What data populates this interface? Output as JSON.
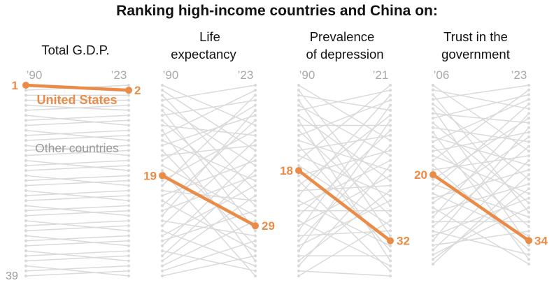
{
  "title": "Ranking high-income countries and China on:",
  "highlight_color": "#ea8c47",
  "other_color": "#dadada",
  "labels": {
    "us": "United States",
    "other": "Other countries",
    "bottom_rank": "39"
  },
  "chart_data": [
    {
      "type": "slope",
      "title_lines": [
        "Total G.D.P."
      ],
      "x": [
        "’90",
        "’23"
      ],
      "n_ranks": 39,
      "highlight": {
        "name": "United States",
        "start": 1,
        "end": 2
      },
      "others": [
        [
          2,
          1
        ],
        [
          3,
          3
        ],
        [
          4,
          4
        ],
        [
          5,
          6
        ],
        [
          6,
          5
        ],
        [
          7,
          9
        ],
        [
          8,
          7
        ],
        [
          9,
          8
        ],
        [
          10,
          12
        ],
        [
          11,
          10
        ],
        [
          12,
          11
        ],
        [
          13,
          15
        ],
        [
          14,
          13
        ],
        [
          15,
          14
        ],
        [
          16,
          18
        ],
        [
          17,
          16
        ],
        [
          18,
          17
        ],
        [
          19,
          21
        ],
        [
          20,
          19
        ],
        [
          21,
          20
        ],
        [
          22,
          24
        ],
        [
          23,
          22
        ],
        [
          24,
          23
        ],
        [
          25,
          27
        ],
        [
          26,
          25
        ],
        [
          27,
          26
        ],
        [
          28,
          30
        ],
        [
          29,
          28
        ],
        [
          30,
          29
        ],
        [
          31,
          33
        ],
        [
          32,
          31
        ],
        [
          33,
          32
        ],
        [
          34,
          36
        ],
        [
          35,
          34
        ],
        [
          36,
          35
        ],
        [
          37,
          39
        ],
        [
          38,
          37
        ],
        [
          39,
          38
        ]
      ]
    },
    {
      "type": "slope",
      "title_lines": [
        "Life",
        "expectancy"
      ],
      "x": [
        "’90",
        "’23"
      ],
      "n_ranks": 39,
      "highlight": {
        "name": "United States",
        "start": 19,
        "end": 29
      },
      "others": [
        [
          1,
          9
        ],
        [
          2,
          14
        ],
        [
          3,
          22
        ],
        [
          4,
          1
        ],
        [
          5,
          17
        ],
        [
          6,
          30
        ],
        [
          7,
          4
        ],
        [
          8,
          25
        ],
        [
          9,
          11
        ],
        [
          10,
          36
        ],
        [
          11,
          2
        ],
        [
          12,
          20
        ],
        [
          13,
          7
        ],
        [
          14,
          33
        ],
        [
          15,
          13
        ],
        [
          16,
          5
        ],
        [
          17,
          27
        ],
        [
          18,
          39
        ],
        [
          20,
          10
        ],
        [
          21,
          3
        ],
        [
          22,
          24
        ],
        [
          23,
          16
        ],
        [
          24,
          34
        ],
        [
          25,
          8
        ],
        [
          26,
          19
        ],
        [
          27,
          6
        ],
        [
          28,
          31
        ],
        [
          29,
          12
        ],
        [
          30,
          37
        ],
        [
          31,
          21
        ],
        [
          32,
          26
        ],
        [
          33,
          15
        ],
        [
          34,
          38
        ],
        [
          35,
          18
        ],
        [
          36,
          23
        ],
        [
          37,
          28
        ],
        [
          38,
          32
        ],
        [
          39,
          35
        ]
      ]
    },
    {
      "type": "slope",
      "title_lines": [
        "Prevalence",
        "of depression"
      ],
      "x": [
        "’90",
        "’21"
      ],
      "n_ranks": 39,
      "highlight": {
        "name": "United States",
        "start": 18,
        "end": 32
      },
      "others": [
        [
          1,
          12
        ],
        [
          2,
          25
        ],
        [
          3,
          6
        ],
        [
          4,
          31
        ],
        [
          5,
          15
        ],
        [
          6,
          2
        ],
        [
          7,
          20
        ],
        [
          8,
          36
        ],
        [
          9,
          9
        ],
        [
          10,
          27
        ],
        [
          11,
          4
        ],
        [
          12,
          18
        ],
        [
          13,
          34
        ],
        [
          14,
          11
        ],
        [
          15,
          23
        ],
        [
          16,
          1
        ],
        [
          17,
          29
        ],
        [
          19,
          14
        ],
        [
          20,
          38
        ],
        [
          21,
          7
        ],
        [
          22,
          21
        ],
        [
          23,
          3
        ],
        [
          24,
          33
        ],
        [
          25,
          16
        ],
        [
          26,
          26
        ],
        [
          27,
          10
        ],
        [
          28,
          37
        ],
        [
          29,
          19
        ],
        [
          30,
          5
        ],
        [
          31,
          30
        ],
        [
          32,
          13
        ],
        [
          33,
          24
        ],
        [
          34,
          8
        ],
        [
          35,
          35
        ],
        [
          36,
          22
        ],
        [
          37,
          17
        ],
        [
          38,
          39
        ],
        [
          39,
          28
        ]
      ]
    },
    {
      "type": "slope",
      "title_lines": [
        "Trust in the",
        "government"
      ],
      "x": [
        "’06",
        "’23"
      ],
      "n_ranks": 39,
      "highlight": {
        "name": "United States",
        "start": 20,
        "end": 34
      },
      "others": [
        [
          1,
          15
        ],
        [
          2,
          6
        ],
        [
          3,
          28
        ],
        [
          4,
          1
        ],
        [
          5,
          21
        ],
        [
          6,
          35
        ],
        [
          7,
          9
        ],
        [
          8,
          3
        ],
        [
          9,
          26
        ],
        [
          10,
          13
        ],
        [
          11,
          38
        ],
        [
          12,
          18
        ],
        [
          13,
          4
        ],
        [
          14,
          31
        ],
        [
          15,
          11
        ],
        [
          16,
          24
        ],
        [
          17,
          2
        ],
        [
          18,
          36
        ],
        [
          19,
          16
        ],
        [
          21,
          8
        ],
        [
          22,
          29
        ],
        [
          23,
          5
        ],
        [
          24,
          33
        ],
        [
          25,
          19
        ],
        [
          26,
          12
        ],
        [
          27,
          39
        ],
        [
          28,
          22
        ],
        [
          29,
          7
        ],
        [
          30,
          30
        ],
        [
          31,
          14
        ],
        [
          32,
          37
        ],
        [
          33,
          25
        ],
        [
          34,
          10
        ],
        [
          35,
          32
        ],
        [
          36,
          17
        ],
        [
          37,
          27
        ],
        [
          38,
          23
        ],
        [
          39,
          20
        ]
      ]
    }
  ]
}
